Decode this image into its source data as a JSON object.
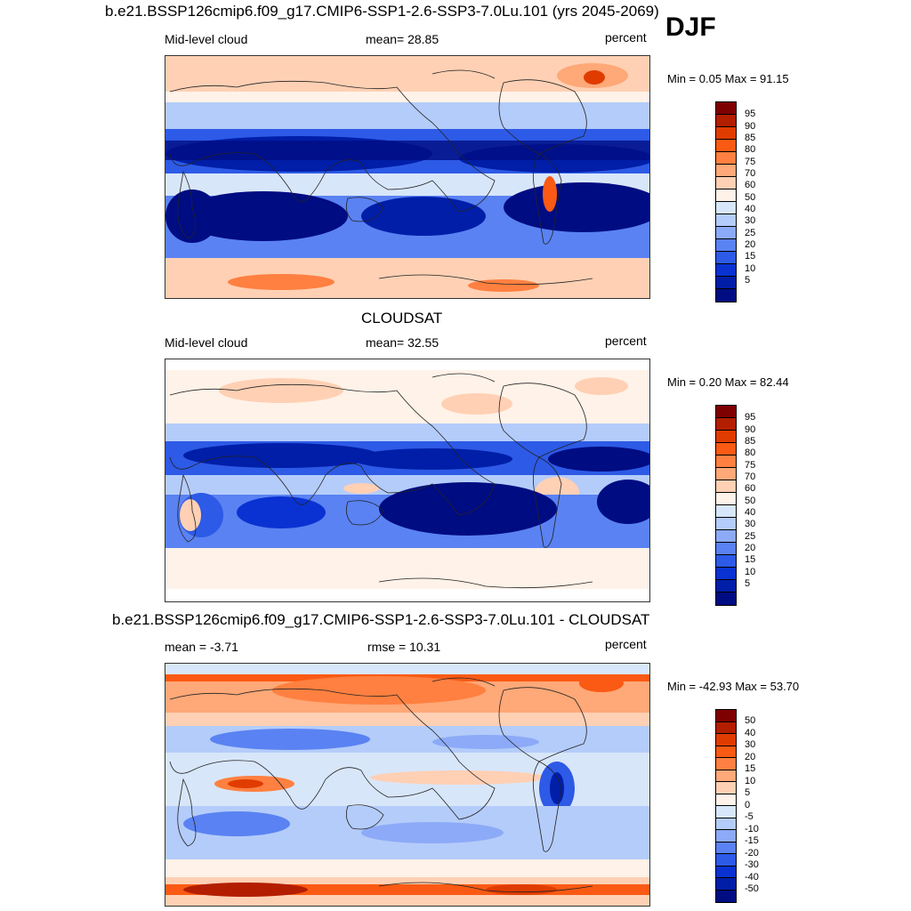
{
  "season": "DJF",
  "panels": [
    {
      "title": "b.e21.BSSP126cmip6.f09_g17.CMIP6-SSP1-2.6-SSP3-7.0Lu.101 (yrs 2045-2069)",
      "left_label": "Mid-level cloud",
      "center_label": "mean=  28.85",
      "right_label": "percent",
      "minmax": "Min =   0.05 Max =  91.15",
      "colorbar_ticks": [
        "95",
        "90",
        "85",
        "80",
        "75",
        "70",
        "60",
        "50",
        "40",
        "30",
        "25",
        "20",
        "15",
        "10",
        "5"
      ]
    },
    {
      "title": "CLOUDSAT",
      "left_label": "Mid-level cloud",
      "center_label": "mean=  32.55",
      "right_label": "percent",
      "minmax": "Min =   0.20 Max =  82.44",
      "colorbar_ticks": [
        "95",
        "90",
        "85",
        "80",
        "75",
        "70",
        "60",
        "50",
        "40",
        "30",
        "25",
        "20",
        "15",
        "10",
        "5"
      ]
    },
    {
      "title": "b.e21.BSSP126cmip6.f09_g17.CMIP6-SSP1-2.6-SSP3-7.0Lu.101 - CLOUDSAT",
      "left_label": "mean =  -3.71",
      "center_label": "rmse =  10.31",
      "right_label": "percent",
      "minmax": "Min = -42.93 Max =  53.70",
      "colorbar_ticks": [
        "50",
        "40",
        "30",
        "20",
        "15",
        "10",
        "5",
        "0",
        "-5",
        "-10",
        "-15",
        "-20",
        "-30",
        "-40",
        "-50"
      ]
    }
  ],
  "colors": {
    "scale": [
      "#7f0000",
      "#b31e00",
      "#e03c00",
      "#fa5a14",
      "#ff8040",
      "#ffa878",
      "#ffd0b4",
      "#fff2e8",
      "#d8e6fa",
      "#b4ccfa",
      "#8caaf7",
      "#5a82f2",
      "#2d5ae6",
      "#0a32d2",
      "#001ea8",
      "#000c82"
    ]
  }
}
